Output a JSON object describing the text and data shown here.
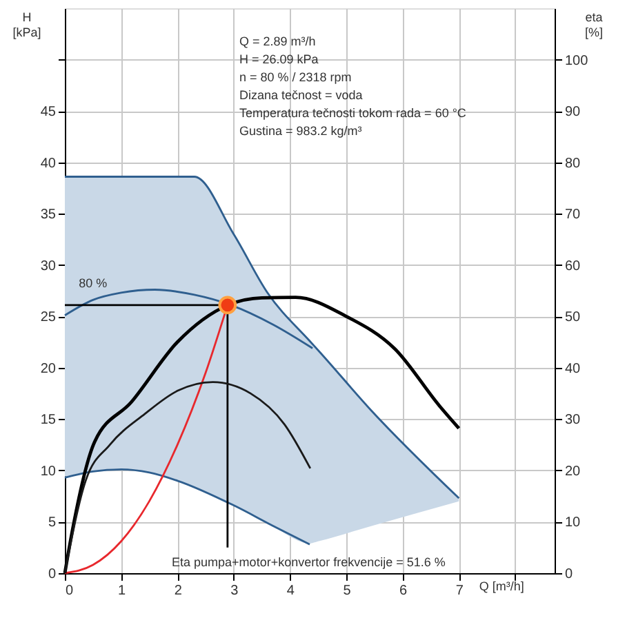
{
  "chart_data": {
    "type": "line",
    "xlabel": "Q [m³/h]",
    "ylabel": "H\n[kPa]",
    "y2label": "eta\n[%]",
    "xlim": [
      0,
      8.7
    ],
    "xticks": [
      0,
      1,
      2,
      3,
      4,
      5,
      6,
      7,
      {
        "value": 8,
        "label": null
      }
    ],
    "ylim": [
      0,
      55
    ],
    "yticks": [
      0,
      5,
      10,
      15,
      20,
      25,
      30,
      35,
      40,
      45,
      {
        "value": 50,
        "label": null
      }
    ],
    "y2lim": [
      0,
      110
    ],
    "y2ticks": [
      0,
      10,
      20,
      30,
      40,
      50,
      60,
      70,
      80,
      90,
      100
    ],
    "grid": true,
    "marker": "none",
    "line_style": "solid",
    "series": [
      {
        "color": "#2f5f8f",
        "x": [
          0,
          1,
          2,
          2.3,
          3,
          3.6,
          4.35,
          4.5,
          5.45,
          7
        ],
        "values": [
          38.6,
          38.6,
          38.6,
          38.6,
          33,
          27.3,
          22.6,
          21.7,
          15.8,
          7.3
        ],
        "lower": [
          9.4,
          10.2,
          9.0,
          8.4,
          6.6,
          4.9,
          2.9,
          3.1,
          4.6,
          7.0
        ],
        "upper": [
          38.6,
          38.6,
          38.6,
          38.6,
          33,
          27.3,
          22.6,
          21.7,
          15.8,
          7.3
        ]
      },
      {
        "color": "#2f5f8f",
        "x": [
          0,
          0.5,
          1.0,
          1.5,
          2.0,
          3.0,
          3.7,
          4.35
        ],
        "values": [
          9.3,
          9.9,
          10.1,
          9.8,
          9.0,
          6.6,
          4.6,
          2.8
        ]
      },
      {
        "color": "#2f5f8f",
        "x": [
          0,
          0.5,
          1.0,
          1.6,
          2.3,
          2.95,
          3.7,
          4.4
        ],
        "values": [
          25.1,
          26.6,
          27.3,
          27.6,
          27.1,
          26.1,
          24.2,
          21.9
        ]
      },
      {
        "color": "#e8282d",
        "x": [
          0,
          0.5,
          1.0,
          1.5,
          2.0,
          2.5,
          2.89
        ],
        "values": [
          0,
          0.8,
          3.1,
          7.0,
          12.5,
          19.5,
          26.1
        ]
      },
      {
        "color": "#000000",
        "x": [
          0,
          2.89
        ],
        "values": [
          26.1,
          26.1
        ]
      },
      {
        "color": "#000000",
        "x": [
          2.89,
          2.89
        ],
        "values": [
          26.1,
          2.5
        ]
      },
      {
        "color": "#000000",
        "axis": "y2",
        "x": [
          0,
          0.12,
          0.53,
          1.18,
          2.0,
          2.9,
          3.5,
          4.1,
          5.0,
          5.86,
          6.66,
          7
        ],
        "values": [
          0,
          7.5,
          25.6,
          33.3,
          45,
          52.2,
          53.6,
          53.7,
          50,
          43.7,
          32.5,
          28.2
        ]
      },
      {
        "color": "#1a1a1a",
        "axis": "y2",
        "x": [
          0,
          0.37,
          0.8,
          1.42,
          2.0,
          2.63,
          3.3,
          3.9,
          4.36
        ],
        "values": [
          0,
          18,
          25,
          31,
          35.5,
          37.2,
          35,
          29,
          20.4
        ]
      },
      {
        "type": "scatter",
        "marker": "circle",
        "color": "#f03c14",
        "x": [
          2.89
        ],
        "values": [
          26.1
        ]
      }
    ],
    "annotations": [
      "Q = 2.89 m³/h",
      "H = 26.09 kPa",
      "n = 80 % / 2318 rpm",
      "Dizana tečnost = voda",
      "Temperatura tečnosti tokom rada = 60 °C",
      "Gustina = 983.2 kg/m³",
      {
        "text": "80 %",
        "x": 0.5,
        "y": 27.4
      },
      "Eta pumpa+motor+konvertor frekvencije = 51.6 %"
    ]
  }
}
